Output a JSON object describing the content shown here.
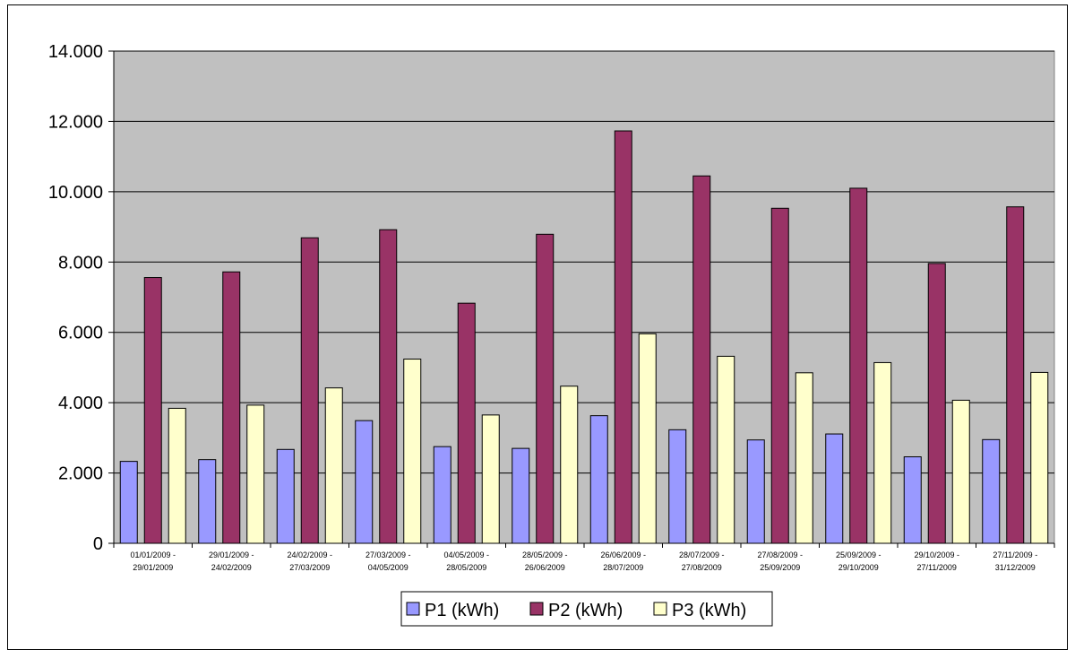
{
  "chart_data": {
    "type": "bar",
    "title": "",
    "xlabel": "",
    "ylabel": "",
    "ylim": [
      0,
      14000
    ],
    "yticks": [
      0,
      2000,
      4000,
      6000,
      8000,
      10000,
      12000,
      14000
    ],
    "ytick_labels": [
      "0",
      "2.000",
      "4.000",
      "6.000",
      "8.000",
      "10.000",
      "12.000",
      "14.000"
    ],
    "grid": true,
    "legend_position": "bottom",
    "categories": [
      [
        "01/01/2009 -",
        "29/01/2009"
      ],
      [
        "29/01/2009 -",
        "24/02/2009"
      ],
      [
        "24/02/2009 -",
        "27/03/2009"
      ],
      [
        "27/03/2009 -",
        "04/05/2009"
      ],
      [
        "04/05/2009 -",
        "28/05/2009"
      ],
      [
        "28/05/2009 -",
        "26/06/2009"
      ],
      [
        "26/06/2009 -",
        "28/07/2009"
      ],
      [
        "28/07/2009 -",
        "27/08/2009"
      ],
      [
        "27/08/2009 -",
        "25/09/2009"
      ],
      [
        "25/09/2009 -",
        "29/10/2009"
      ],
      [
        "29/10/2009 -",
        "27/11/2009"
      ],
      [
        "27/11/2009 -",
        "31/12/2009"
      ]
    ],
    "series": [
      {
        "name": "P1 (kWh)",
        "color": "#9999ff",
        "values": [
          2330,
          2380,
          2670,
          3490,
          2750,
          2700,
          3630,
          3230,
          2940,
          3110,
          2460,
          2950
        ]
      },
      {
        "name": "P2 (kWh)",
        "color": "#993366",
        "values": [
          7560,
          7720,
          8690,
          8920,
          6830,
          8790,
          11730,
          10450,
          9530,
          10100,
          7960,
          9570
        ]
      },
      {
        "name": "P3 (kWh)",
        "color": "#ffffcc",
        "values": [
          3840,
          3930,
          4420,
          5240,
          3650,
          4470,
          5960,
          5320,
          4850,
          5140,
          4070,
          4860
        ]
      }
    ],
    "colors": {
      "plot_background": "#c0c0c0",
      "gridline": "#000000",
      "bar_border": "#000000"
    }
  }
}
